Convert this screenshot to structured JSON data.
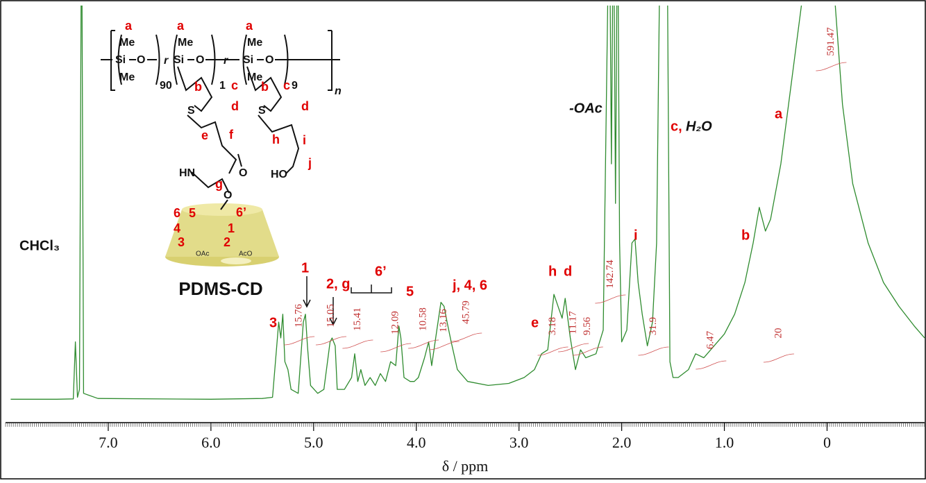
{
  "chart_data": {
    "type": "line",
    "xlabel": "δ / ppm",
    "color": "#2e8b2e",
    "xlim": [
      8.0,
      -0.95
    ],
    "ylim": [
      -4.7,
      100
    ],
    "xticks": [
      {
        "value": 7,
        "label": "7.0"
      },
      {
        "value": 6,
        "label": "6.0"
      },
      {
        "value": 5,
        "label": "5.0"
      },
      {
        "value": 4,
        "label": "4.0"
      },
      {
        "value": 3,
        "label": "3.0"
      },
      {
        "value": 2,
        "label": "2.0"
      },
      {
        "value": 1,
        "label": "1.0"
      },
      0
    ],
    "x": [
      7.95,
      7.5,
      7.34,
      7.32,
      7.3,
      7.28,
      7.26,
      7.24,
      7.1,
      6.0,
      5.5,
      5.4,
      5.34,
      5.32,
      5.3,
      5.28,
      5.25,
      5.22,
      5.15,
      5.1,
      5.08,
      5.06,
      5.03,
      4.96,
      4.9,
      4.84,
      4.82,
      4.79,
      4.77,
      4.7,
      4.63,
      4.6,
      4.57,
      4.54,
      4.5,
      4.45,
      4.4,
      4.35,
      4.3,
      4.25,
      4.2,
      4.17,
      4.15,
      4.12,
      4.06,
      4.02,
      3.98,
      3.92,
      3.88,
      3.85,
      3.8,
      3.76,
      3.73,
      3.7,
      3.66,
      3.6,
      3.5,
      3.3,
      3.1,
      2.95,
      2.85,
      2.78,
      2.72,
      2.66,
      2.62,
      2.58,
      2.55,
      2.5,
      2.45,
      2.4,
      2.35,
      2.25,
      2.18,
      2.12,
      2.1,
      2.08,
      2.06,
      2.04,
      2.02,
      2.0,
      1.95,
      1.9,
      1.87,
      1.84,
      1.8,
      1.75,
      1.7,
      1.66,
      1.62,
      1.56,
      1.53,
      1.5,
      1.45,
      1.35,
      1.28,
      1.2,
      1.1,
      1.0,
      0.9,
      0.8,
      0.72,
      0.66,
      0.6,
      0.55,
      0.45,
      0.35,
      0.25,
      0.18,
      -0.02,
      -0.08,
      -0.15,
      -0.25,
      -0.4,
      -0.55,
      -0.7,
      -0.85,
      -0.95
    ],
    "values": [
      0.5,
      0.5,
      0.6,
      15,
      1,
      3,
      130,
      2,
      0.7,
      0.5,
      0.7,
      1,
      20,
      16,
      22,
      10,
      8,
      3,
      2,
      20,
      22,
      14,
      4,
      2,
      3,
      15,
      16,
      14,
      3,
      3,
      6,
      12,
      5,
      8,
      4,
      6,
      4,
      7,
      5,
      10,
      9,
      19,
      16,
      6,
      5,
      5,
      6,
      11,
      15,
      9,
      18,
      25,
      24,
      20,
      15,
      8,
      5,
      4,
      4.5,
      6,
      8,
      12,
      13,
      27,
      24,
      21,
      26,
      16,
      8,
      13,
      11,
      12,
      18,
      130,
      60,
      130,
      50,
      130,
      40,
      15,
      18,
      40,
      41,
      30,
      22,
      14,
      20,
      40,
      130,
      130,
      10,
      6,
      6,
      8,
      12,
      11,
      14,
      17,
      22,
      30,
      40,
      49,
      43,
      46,
      60,
      80,
      100,
      130,
      130,
      100,
      75,
      55,
      40,
      30,
      24,
      19,
      16
    ],
    "integrals": [
      {
        "ppm": 5.14,
        "value": 15.76
      },
      {
        "ppm": 4.83,
        "value": 15.05
      },
      {
        "ppm": 4.57,
        "value": 15.41
      },
      {
        "ppm": 4.2,
        "value": 12.09
      },
      {
        "ppm": 3.93,
        "value": 10.58
      },
      {
        "ppm": 3.73,
        "value": 13.16
      },
      {
        "ppm": 3.51,
        "value": 45.79
      },
      {
        "ppm": 2.67,
        "value": 3.18
      },
      {
        "ppm": 2.47,
        "value": 11.17
      },
      {
        "ppm": 2.33,
        "value": 9.56
      },
      {
        "ppm": 2.11,
        "value": 142.74
      },
      {
        "ppm": 1.69,
        "value": 31.9
      },
      {
        "ppm": 1.13,
        "value": 6.47
      },
      {
        "ppm": 0.47,
        "value": 20.0
      },
      {
        "ppm": -0.04,
        "value": 591.47
      }
    ],
    "annotations": [
      "CHCl₃",
      "3",
      "1",
      "2, g",
      "6’",
      "5",
      "j, 4, 6",
      "e",
      "h",
      "d",
      "i",
      "b",
      "a",
      "-OAc",
      "c,",
      "H₂O"
    ]
  },
  "structure": {
    "labels": [
      "a",
      "a",
      "a",
      "Me",
      "Si",
      "O",
      "Me",
      "90",
      "r",
      "Me",
      "Si",
      "O",
      "1",
      "r",
      "Me",
      "Si",
      "O",
      "Me",
      "9",
      "n",
      "b",
      "c",
      "d",
      "S",
      "e",
      "f",
      "HN",
      "O",
      "g",
      "O",
      "b",
      "c",
      "d",
      "S",
      "h",
      "i",
      "j",
      "HO",
      "6",
      "5",
      "6’",
      "4",
      "1",
      "3",
      "2",
      "OAc",
      "AcO"
    ],
    "name": "PDMS-CD"
  }
}
